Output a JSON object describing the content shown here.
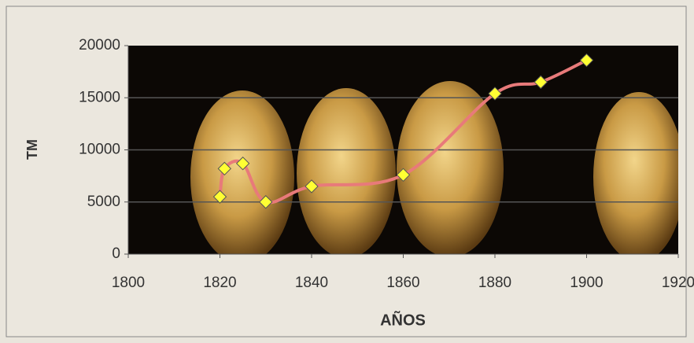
{
  "chart_data": {
    "type": "line",
    "x_label": "AÑOS",
    "y_label": "TM",
    "x": [
      1820,
      1821,
      1825,
      1830,
      1840,
      1860,
      1880,
      1890,
      1900
    ],
    "series": [
      {
        "name": "TM",
        "color": "#e87a7a",
        "marker_color": "#ffff33",
        "values": [
          5500,
          8200,
          8700,
          5000,
          6500,
          7600,
          15400,
          16500,
          18600
        ]
      }
    ],
    "xlim": [
      1800,
      1920
    ],
    "xticks": [
      1800,
      1820,
      1840,
      1860,
      1880,
      1900,
      1920
    ],
    "ylim": [
      0,
      20000
    ],
    "yticks": [
      0,
      5000,
      10000,
      15000,
      20000
    ],
    "grid": true,
    "smooth": true
  }
}
